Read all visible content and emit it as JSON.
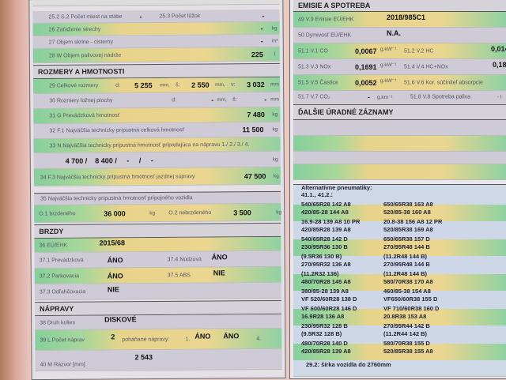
{
  "left": {
    "r25_2": {
      "label": "25.2 S.2 Počet miest na státie",
      "value": "-",
      "l2": "25.3 Počet lôžok",
      "v2": "-"
    },
    "r26": {
      "label": "26 Zaťaženie strechy",
      "value": "-",
      "unit": "kg"
    },
    "r27": {
      "label": "27 Objem skrine - cisterny",
      "value": "-",
      "unit": "m³"
    },
    "r28": {
      "label": "28 W Objem palivovej nádrže",
      "value": "225",
      "unit": "l"
    },
    "h_rozmery": "ROZMERY A HMOTNOSTI",
    "r29": {
      "label": "29 Celkové rozmery",
      "d": "d:",
      "dv": "5 255",
      "mm1": "mm,",
      "s": "š:",
      "sv": "2 550",
      "mm2": "mm,",
      "vl": "v:",
      "vv": "3 032",
      "mm3": "mm"
    },
    "r30": {
      "label": "30 Rozmery ložnej plochy",
      "d": "d:",
      "dv": "-",
      "mm1": "mm,",
      "s": "š:",
      "sv": "-",
      "mm2": "mm"
    },
    "r31": {
      "label": "31 G Prevádzková hmotnosť",
      "value": "7 480",
      "unit": "kg"
    },
    "r32": {
      "label": "32 F.1 Najväčšia technicky prípustná celková hmotnosť",
      "value": "11 500",
      "unit": "kg"
    },
    "r33": {
      "label": "33 N Najväčšia technicky prípustná hmotnosť pripadajúca na nápravu 1./ 2./ 3./ 4.",
      "values": "4 700 /    8 400 /     -     /     -",
      "unit": "kg"
    },
    "r34": {
      "label": "34 F.3 Najväčšia technicky prípustná hmotnosť jazdnej súpravy",
      "value": "47 500",
      "unit": "kg"
    },
    "r35": {
      "label": "35 Najväčšia technicky prípustná hmotnosť prípojného vozidla"
    },
    "rO": {
      "l1": "O.1 brzdeného",
      "v1": "36 000",
      "u1": "kg",
      "l2": "O.2 nebrzdeného",
      "v2": "3 500",
      "u2": "kg"
    },
    "h_brzdy": "BRZDY",
    "r36": {
      "label": "36 EÚ/EHK",
      "value": "2015/68"
    },
    "r37_1": {
      "label": "37.1 Prevádzková",
      "value": "ÁNO",
      "l2": "37.4 Núdzová",
      "v2": "ÁNO"
    },
    "r37_2": {
      "label": "37.2 Parkovacia",
      "value": "ÁNO",
      "l2": "37.5 ABS",
      "v2": "NIE"
    },
    "r37_3": {
      "label": "37.3 Odľahčovacia",
      "value": "NIE"
    },
    "h_napravy": "NÁPRAVY",
    "r38": {
      "label": "38 Druh kolies",
      "value": "DISKOVÉ"
    },
    "r39": {
      "label": "39 L Počet náprav",
      "value": "2",
      "l2": "poháňané nápravy:",
      "n1": "1.",
      "a1": "ÁNO",
      "n2": "2.",
      "a2": "ÁNO",
      "n4": "4."
    },
    "r40": {
      "label": "40 M Rázvor [mm]",
      "value": "2 543"
    }
  },
  "right": {
    "h_emisie": "EMISIE A SPOTREBA",
    "r49": {
      "label": "49 V.9 Emisie EÚ/EHK",
      "value": "2018/985C1"
    },
    "r50": {
      "label": "50 Dymivosť EÚ/EHK",
      "value": "N.A."
    },
    "r51_1": {
      "label": "51.1 V.1 CO",
      "value": "0,0067",
      "unit": "g.kW⁻¹",
      "l2": "51.2 V.2 HC",
      "v2": "0,0149"
    },
    "r51_3": {
      "label": "51.3 V.3 NOx",
      "value": "0,1691",
      "unit": "g.kW⁻¹",
      "l2": "51.4 V.4 HC+NOx",
      "v2": "0,1840"
    },
    "r51_5": {
      "label": "51.5 V.5 Častice",
      "value": "0,0052",
      "unit": "g.kW⁻¹",
      "l2": "51.6 V.6 Kor. súčiniteľ absorpcie"
    },
    "r51_7": {
      "label": "51.7 V.7 CO₂",
      "value": "-",
      "unit": "g.km⁻¹",
      "l2": "51.8 V.8 Spotreba paliva",
      "v2": "- l"
    },
    "h_dalsie": "ĎALŠIE ÚRADNÉ ZÁZNAMY",
    "tires": {
      "title": "Alternatívne pneumatiky:",
      "sub": "41.1., 41.2.:",
      "rows": [
        [
          "540/65R28 142 A8",
          "650/65R38 163 A8"
        ],
        [
          "420/85-28 144 A8",
          "520/85-38 160 A8"
        ],
        [
          "16.9-28 139 A8 10 PR",
          "20.8-38 156 A8 12 PR"
        ],
        [
          "420/85R28 139 A8",
          "520/85R38 169 A8"
        ],
        [
          "540/65R28 142 D",
          "650/65R38 157 D"
        ],
        [
          "230/95R36 130 B",
          "270/95R48 144 B"
        ],
        [
          "(9.5R36 130 B)",
          "(11.2R48 144 B)"
        ],
        [
          "270/95R32 136 A8",
          "270/95R48 144 B"
        ],
        [
          "(11.2R32 136)",
          "(11.2R48 144 B)"
        ],
        [
          "480/70R28 145 A8",
          "580/70R38 170 A8"
        ],
        [
          "380/85-28 139 A8",
          "460/85-38 154 A8"
        ],
        [
          "VF 520/60R28 138 D",
          "VF650/60R38 155 D"
        ],
        [
          "VF 600/60R28  146 D",
          "VF 710/60R38 160 D"
        ],
        [
          "16.9R28 136 A8",
          "20.8R38 153 A8"
        ],
        [
          "230/95R32 128 B",
          "270/95R44 142 B"
        ],
        [
          "(9.5R32 128 B)",
          "(11.2R44 142 B)"
        ],
        [
          "480/70R28 140 D",
          "580/70R38 155 D"
        ],
        [
          "420/85R28 139 A8",
          "520/85R38 155 A8"
        ]
      ],
      "footer": "29.2: šírka vozidla do 2760mm"
    }
  },
  "colors": {
    "green": "#86cf9c",
    "yellow": "#e7d38a",
    "gray": "#cfcbd6"
  }
}
